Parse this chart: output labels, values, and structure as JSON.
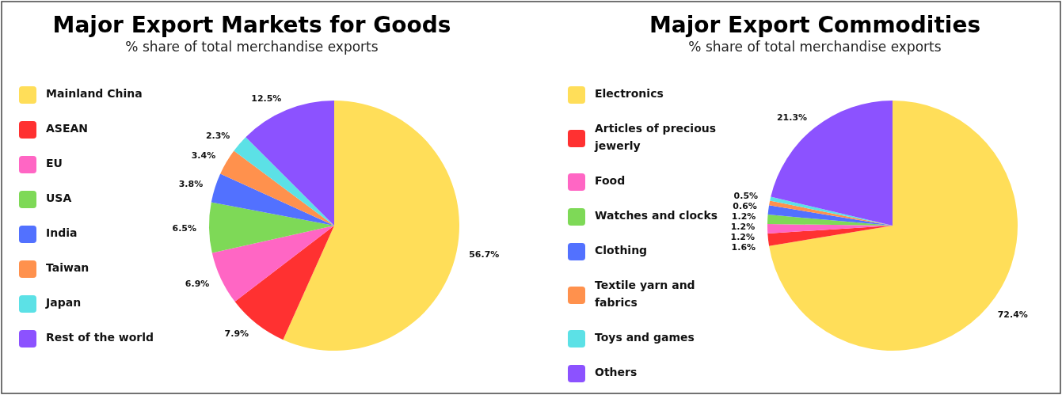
{
  "chart_data": [
    {
      "type": "pie",
      "title": "Major Export Markets for Goods",
      "subtitle": "% share of total merchandise exports",
      "categories": [
        "Mainland China",
        "ASEAN",
        "EU",
        "USA",
        "India",
        "Taiwan",
        "Japan",
        "Rest of the world"
      ],
      "values": [
        56.7,
        7.9,
        6.9,
        6.5,
        3.8,
        3.4,
        2.3,
        12.5
      ],
      "value_labels": [
        "56.7%",
        "7.9%",
        "6.9%",
        "6.5%",
        "3.8%",
        "3.4%",
        "2.3%",
        "12.5%"
      ],
      "colors": [
        "#ffde59",
        "#ff3131",
        "#ff66c4",
        "#7ed957",
        "#5271ff",
        "#ff914d",
        "#5ce1e6",
        "#8c52ff"
      ],
      "legend": "left"
    },
    {
      "type": "pie",
      "title": "Major Export Commodities",
      "subtitle": "% share of total merchandise exports",
      "categories": [
        "Electronics",
        "Articles of precious jewerly",
        "Food",
        "Watches and clocks",
        "Clothing",
        "Textile yarn and fabrics",
        "Toys and games",
        "Others"
      ],
      "values": [
        72.4,
        1.6,
        1.2,
        1.2,
        1.2,
        0.6,
        0.5,
        21.3
      ],
      "value_labels": [
        "72.4%",
        "1.6%",
        "1.2%",
        "1.2%",
        "1.2%",
        "0.6%",
        "0.5%",
        "21.3%"
      ],
      "colors": [
        "#ffde59",
        "#ff3131",
        "#ff66c4",
        "#7ed957",
        "#5271ff",
        "#ff914d",
        "#5ce1e6",
        "#8c52ff"
      ],
      "legend": "left"
    }
  ]
}
